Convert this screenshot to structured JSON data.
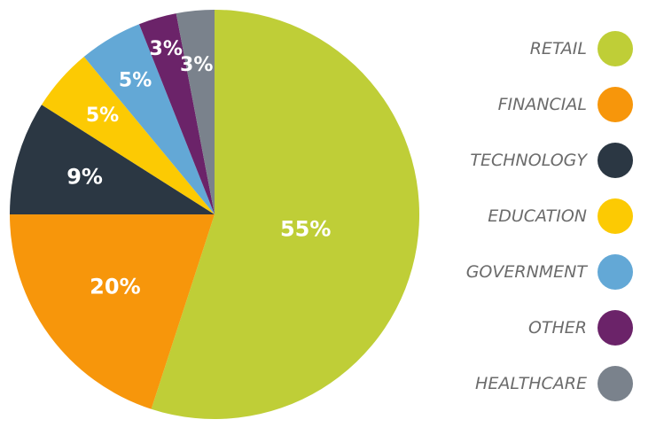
{
  "chart_data": {
    "type": "pie",
    "title": "",
    "legend_position": "right",
    "slices": [
      {
        "label": "RETAIL",
        "value": 55,
        "display": "55%",
        "color": "#bfce37"
      },
      {
        "label": "FINANCIAL",
        "value": 20,
        "display": "20%",
        "color": "#f7960b"
      },
      {
        "label": "TECHNOLOGY",
        "value": 9,
        "display": "9%",
        "color": "#2b3743"
      },
      {
        "label": "EDUCATION",
        "value": 5,
        "display": "5%",
        "color": "#fcca03"
      },
      {
        "label": "GOVERNMENT",
        "value": 5,
        "display": "5%",
        "color": "#63a8d6"
      },
      {
        "label": "OTHER",
        "value": 3,
        "display": "3%",
        "color": "#6b2369"
      },
      {
        "label": "HEALTHCARE",
        "value": 3,
        "display": "3%",
        "color": "#7a828c"
      }
    ]
  }
}
